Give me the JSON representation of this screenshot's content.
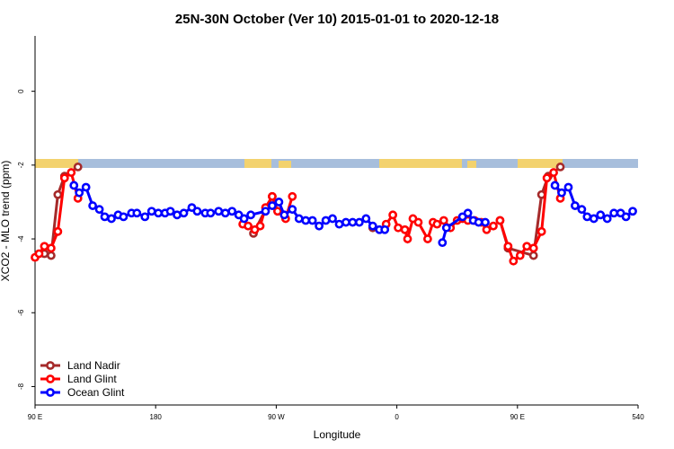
{
  "chart_data": {
    "type": "line",
    "title": "25N-30N October (Ver 10)   2015-01-01 to 2020-12-18",
    "x_label": "Longitude",
    "y_label": "XCO2 - MLO trend (ppm)",
    "xlim": [
      90,
      540
    ],
    "xticks": [
      {
        "value": 90,
        "label": "90 E"
      },
      180,
      {
        "value": 270,
        "label": "90 W"
      },
      {
        "value": 360,
        "label": "0"
      },
      {
        "value": 450,
        "label": "90 E"
      },
      540
    ],
    "ylim": [
      -8.5,
      1.5
    ],
    "yticks": [
      0,
      -2,
      -4,
      -6,
      -8
    ],
    "legend": "bottom-left",
    "series": [
      {
        "name": "Land Nadir",
        "color": "#a52a2a",
        "x": [
          97,
          102,
          107,
          112,
          122,
          null,
          253,
          267,
          null,
          342,
          null,
          437,
          443,
          462,
          468,
          473,
          482
        ],
        "values": [
          -4.4,
          -4.45,
          -2.8,
          -2.3,
          -2.05,
          null,
          -3.85,
          -2.85,
          null,
          -3.7,
          null,
          -3.5,
          -4.25,
          -4.45,
          -2.8,
          -2.3,
          -2.05
        ]
      },
      {
        "name": "Land Glint",
        "color": "#ff0000",
        "x": [
          90,
          93,
          97,
          102,
          107,
          112,
          117,
          122,
          null,
          245,
          249,
          254,
          258,
          262,
          267,
          271,
          277,
          282,
          null,
          352,
          357,
          361,
          366,
          368,
          372,
          376,
          383,
          387,
          390,
          395,
          400,
          405,
          409,
          413,
          418,
          423,
          427,
          432,
          null,
          437,
          443,
          447,
          452,
          457,
          462,
          468,
          472,
          477,
          482
        ],
        "values": [
          -4.5,
          -4.4,
          -4.2,
          -4.25,
          -3.8,
          -2.35,
          -2.2,
          -2.9,
          null,
          -3.6,
          -3.65,
          -3.75,
          -3.65,
          -3.15,
          -2.85,
          -3.25,
          -3.45,
          -2.85,
          null,
          -3.6,
          -3.35,
          -3.7,
          -3.75,
          -4.0,
          -3.45,
          -3.55,
          -4.0,
          -3.55,
          -3.6,
          -3.5,
          -3.7,
          -3.5,
          -3.45,
          -3.5,
          -3.5,
          -3.55,
          -3.75,
          -3.65,
          null,
          -3.5,
          -4.2,
          -4.6,
          -4.45,
          -4.2,
          -4.25,
          -3.8,
          -2.35,
          -2.2,
          -2.9
        ]
      },
      {
        "name": "Ocean Glint",
        "color": "#0000ff",
        "x": [
          119,
          123,
          128,
          133,
          138,
          142,
          147,
          152,
          156,
          162,
          166,
          172,
          177,
          182,
          187,
          191,
          196,
          201,
          207,
          211,
          217,
          221,
          227,
          232,
          237,
          242,
          246,
          251,
          262,
          267,
          272,
          276,
          282,
          287,
          292,
          297,
          302,
          307,
          312,
          317,
          322,
          327,
          332,
          337,
          342,
          347,
          351,
          null,
          394,
          397,
          409,
          413,
          417,
          421,
          426,
          null,
          478,
          483,
          488,
          493,
          498,
          502,
          507,
          512,
          517,
          522,
          527,
          531,
          536
        ],
        "values": [
          -2.55,
          -2.75,
          -2.6,
          -3.1,
          -3.2,
          -3.4,
          -3.45,
          -3.35,
          -3.4,
          -3.3,
          -3.3,
          -3.4,
          -3.25,
          -3.3,
          -3.3,
          -3.25,
          -3.35,
          -3.3,
          -3.15,
          -3.25,
          -3.3,
          -3.3,
          -3.25,
          -3.3,
          -3.25,
          -3.35,
          -3.45,
          -3.35,
          -3.25,
          -3.1,
          -3.0,
          -3.35,
          -3.2,
          -3.45,
          -3.5,
          -3.5,
          -3.65,
          -3.5,
          -3.45,
          -3.6,
          -3.55,
          -3.55,
          -3.55,
          -3.45,
          -3.65,
          -3.75,
          -3.75,
          null,
          -4.1,
          -3.7,
          -3.4,
          -3.3,
          -3.5,
          -3.55,
          -3.55,
          null,
          -2.55,
          -2.75,
          -2.6,
          -3.1,
          -3.2,
          -3.4,
          -3.45,
          -3.35,
          -3.45,
          -3.3,
          -3.3,
          -3.4,
          -3.25
        ]
      }
    ]
  }
}
